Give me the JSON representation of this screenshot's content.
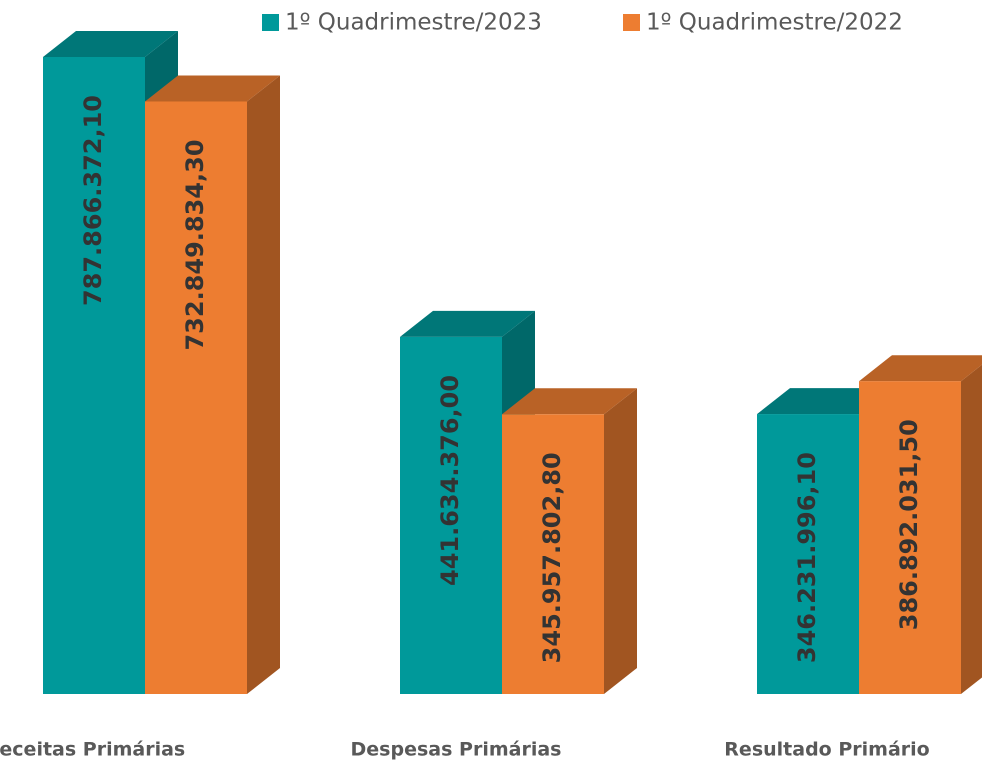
{
  "chart_data": {
    "type": "bar3d",
    "categories": [
      "Receitas Primárias",
      "Despesas Primárias",
      "Resultado Primário"
    ],
    "series": [
      {
        "name": "1º Quadrimestre/2023",
        "color": "#00999A",
        "values": [
          787866372.1,
          441634376.0,
          346231996.1
        ],
        "value_labels": [
          "787.866.372,10",
          "441.634.376,00",
          "346.231.996,10"
        ]
      },
      {
        "name": "1º Quadrimestre/2022",
        "color": "#ED7D31",
        "values": [
          732849834.3,
          345957802.8,
          386892031.5
        ],
        "value_labels": [
          "732.849.834,30",
          "345.957.802,80",
          "386.892.031,50"
        ]
      }
    ],
    "legend": "top-right"
  }
}
